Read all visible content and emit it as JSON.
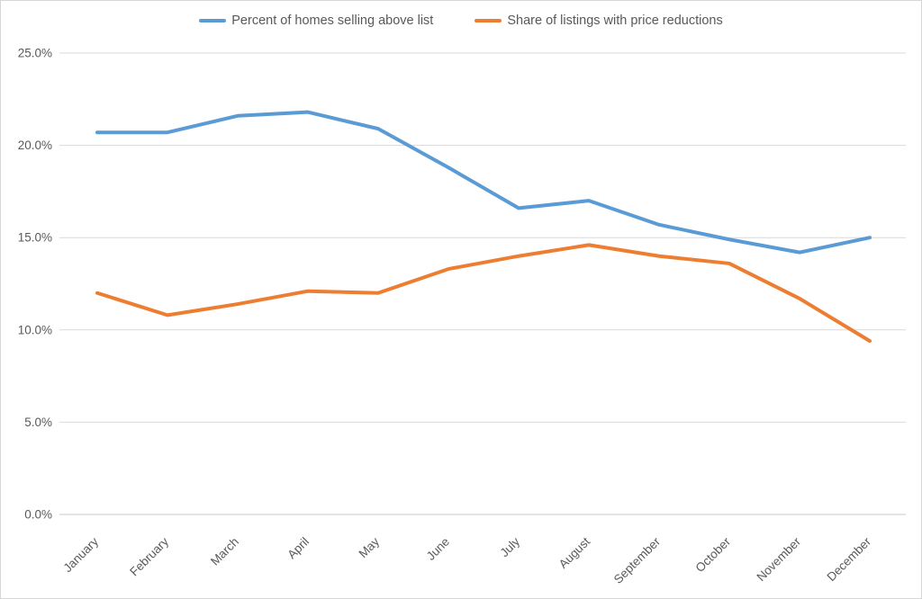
{
  "chart_data": {
    "type": "line",
    "title": "",
    "xlabel": "",
    "ylabel": "",
    "categories": [
      "January",
      "February",
      "March",
      "April",
      "May",
      "June",
      "July",
      "August",
      "September",
      "October",
      "November",
      "December"
    ],
    "series": [
      {
        "name": "Percent of homes selling above list",
        "color": "#5B9BD5",
        "values": [
          20.7,
          20.7,
          21.6,
          21.8,
          20.9,
          18.8,
          16.6,
          17.0,
          15.7,
          14.9,
          14.2,
          15.0
        ]
      },
      {
        "name": "Share of listings with price reductions",
        "color": "#ED7D31",
        "values": [
          12.0,
          10.8,
          11.4,
          12.1,
          12.0,
          13.3,
          14.0,
          14.6,
          14.0,
          13.6,
          11.7,
          9.4
        ]
      }
    ],
    "yaxis": {
      "min": 0,
      "max": 25,
      "step": 5,
      "tick_labels": [
        "0.0%",
        "5.0%",
        "10.0%",
        "15.0%",
        "20.0%",
        "25.0%"
      ]
    },
    "grid": "horizontal",
    "legend_position": "top-center",
    "x_label_rotation_deg": -45
  },
  "legend": {
    "items": [
      {
        "label": "Percent of homes selling above list"
      },
      {
        "label": "Share of listings with price reductions"
      }
    ]
  },
  "colors": {
    "series_blue": "#5B9BD5",
    "series_orange": "#ED7D31",
    "gridline": "#D9D9D9",
    "text": "#595959",
    "background": "#FFFFFF",
    "border": "#D6D6D6"
  }
}
